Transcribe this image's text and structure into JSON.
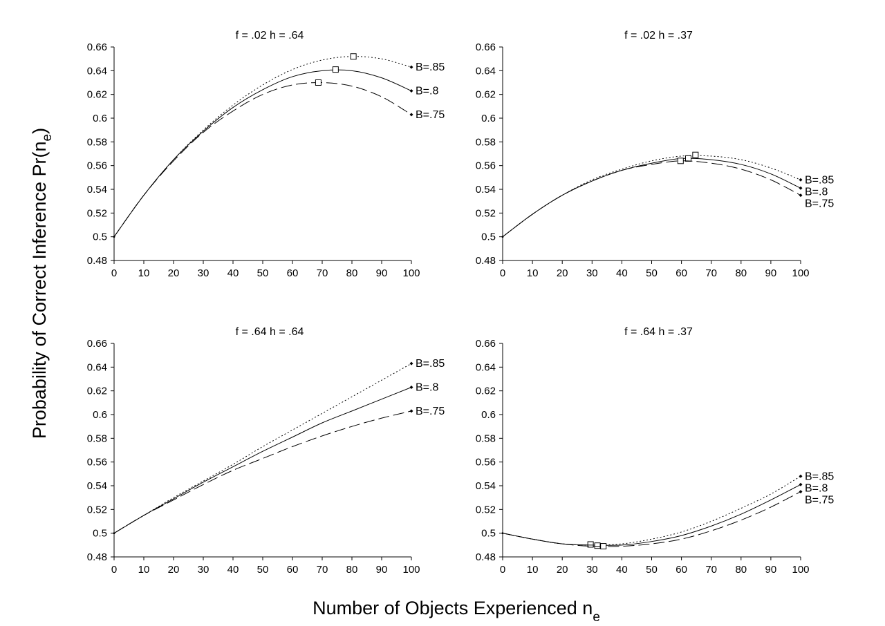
{
  "chart_data": {
    "type": "line",
    "xlabel": {
      "text": "Number of Objects Experienced n",
      "subscript": "e"
    },
    "ylabel": {
      "text": "Probability of Correct Inference Pr(n",
      "subscript": "e",
      "suffix": ")"
    },
    "xlim": [
      0,
      100
    ],
    "ylim": [
      0.48,
      0.66
    ],
    "xticks": [
      0,
      10,
      20,
      30,
      40,
      50,
      60,
      70,
      80,
      90,
      100
    ],
    "yticks": [
      "0.48",
      "0.5",
      "0.52",
      "0.54",
      "0.56",
      "0.58",
      "0.6",
      "0.62",
      "0.64",
      "0.66"
    ],
    "grid": false,
    "legend": "none",
    "panels": [
      {
        "title": "f = .02    h = .64",
        "series": [
          {
            "name": "B=.85",
            "style": "dotted",
            "x": [
              0,
              10,
              20,
              30,
              40,
              50,
              60,
              70,
              80,
              90,
              100
            ],
            "y": [
              0.5,
              0.535,
              0.565,
              0.59,
              0.611,
              0.628,
              0.641,
              0.649,
              0.652,
              0.65,
              0.643
            ],
            "max": [
              80.5,
              0.652
            ]
          },
          {
            "name": "B=.8",
            "style": "solid",
            "x": [
              0,
              10,
              20,
              30,
              40,
              50,
              60,
              70,
              80,
              90,
              100
            ],
            "y": [
              0.5,
              0.535,
              0.565,
              0.589,
              0.609,
              0.624,
              0.635,
              0.64,
              0.64,
              0.634,
              0.623
            ],
            "max": [
              74.5,
              0.641
            ]
          },
          {
            "name": "B=.75",
            "style": "dashed",
            "x": [
              0,
              10,
              20,
              30,
              40,
              50,
              60,
              70,
              80,
              90,
              100
            ],
            "y": [
              0.5,
              0.535,
              0.564,
              0.588,
              0.606,
              0.62,
              0.628,
              0.63,
              0.627,
              0.618,
              0.603
            ],
            "max": [
              68.7,
              0.63
            ]
          }
        ]
      },
      {
        "title": "f = .02    h = .37",
        "series": [
          {
            "name": "B=.85",
            "style": "dotted",
            "x": [
              0,
              10,
              20,
              30,
              40,
              50,
              60,
              70,
              80,
              90,
              100
            ],
            "y": [
              0.5,
              0.519,
              0.535,
              0.548,
              0.557,
              0.564,
              0.568,
              0.568,
              0.565,
              0.558,
              0.548
            ],
            "max": [
              64.7,
              0.569
            ]
          },
          {
            "name": "B=.8",
            "style": "solid",
            "x": [
              0,
              10,
              20,
              30,
              40,
              50,
              60,
              70,
              80,
              90,
              100
            ],
            "y": [
              0.5,
              0.519,
              0.535,
              0.547,
              0.556,
              0.562,
              0.566,
              0.565,
              0.561,
              0.553,
              0.541
            ],
            "max": [
              62.3,
              0.566
            ]
          },
          {
            "name": "B=.75",
            "style": "dashed",
            "x": [
              0,
              10,
              20,
              30,
              40,
              50,
              60,
              70,
              80,
              90,
              100
            ],
            "y": [
              0.5,
              0.519,
              0.535,
              0.547,
              0.556,
              0.561,
              0.564,
              0.562,
              0.557,
              0.548,
              0.535
            ],
            "max": [
              59.7,
              0.564
            ]
          }
        ]
      },
      {
        "title": "f = .64    h = .64",
        "series": [
          {
            "name": "B=.85",
            "style": "dotted",
            "x": [
              0,
              10,
              20,
              30,
              40,
              50,
              60,
              70,
              80,
              90,
              100
            ],
            "y": [
              0.5,
              0.515,
              0.53,
              0.544,
              0.558,
              0.573,
              0.587,
              0.601,
              0.615,
              0.629,
              0.643
            ]
          },
          {
            "name": "B=.8",
            "style": "solid",
            "x": [
              0,
              10,
              20,
              30,
              40,
              50,
              60,
              70,
              80,
              90,
              100
            ],
            "y": [
              0.5,
              0.515,
              0.529,
              0.543,
              0.556,
              0.569,
              0.581,
              0.593,
              0.603,
              0.613,
              0.623
            ]
          },
          {
            "name": "B=.75",
            "style": "dashed",
            "x": [
              0,
              10,
              20,
              30,
              40,
              50,
              60,
              70,
              80,
              90,
              100
            ],
            "y": [
              0.5,
              0.515,
              0.528,
              0.541,
              0.553,
              0.563,
              0.573,
              0.582,
              0.59,
              0.597,
              0.603
            ]
          }
        ]
      },
      {
        "title": "f = .64    h = .37",
        "series": [
          {
            "name": "B=.85",
            "style": "dotted",
            "x": [
              0,
              10,
              20,
              30,
              40,
              50,
              60,
              70,
              80,
              90,
              100
            ],
            "y": [
              0.5,
              0.495,
              0.491,
              0.49,
              0.491,
              0.495,
              0.501,
              0.51,
              0.521,
              0.533,
              0.548
            ],
            "max": [
              29.5,
              0.4905
            ]
          },
          {
            "name": "B=.8",
            "style": "solid",
            "x": [
              0,
              10,
              20,
              30,
              40,
              50,
              60,
              70,
              80,
              90,
              100
            ],
            "y": [
              0.5,
              0.495,
              0.491,
              0.49,
              0.49,
              0.493,
              0.498,
              0.506,
              0.516,
              0.528,
              0.541
            ],
            "max": [
              31.8,
              0.4895
            ]
          },
          {
            "name": "B=.75",
            "style": "dashed",
            "x": [
              0,
              10,
              20,
              30,
              40,
              50,
              60,
              70,
              80,
              90,
              100
            ],
            "y": [
              0.5,
              0.495,
              0.491,
              0.489,
              0.489,
              0.491,
              0.495,
              0.502,
              0.511,
              0.522,
              0.535
            ],
            "max": [
              33.8,
              0.489
            ]
          }
        ]
      }
    ]
  }
}
